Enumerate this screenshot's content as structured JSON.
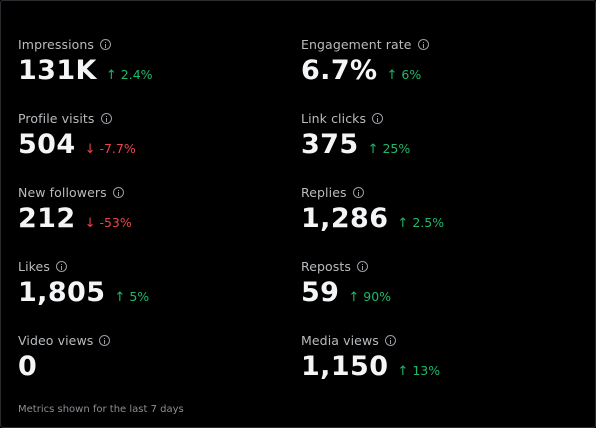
{
  "metrics": [
    {
      "label": "Impressions",
      "value": "131K",
      "direction": "up",
      "arrow": "↑",
      "delta": "2.4%"
    },
    {
      "label": "Engagement rate",
      "value": "6.7%",
      "direction": "up",
      "arrow": "↑",
      "delta": "6%"
    },
    {
      "label": "Profile visits",
      "value": "504",
      "direction": "down",
      "arrow": "↓",
      "delta": "-7.7%"
    },
    {
      "label": "Link clicks",
      "value": "375",
      "direction": "up",
      "arrow": "↑",
      "delta": "25%"
    },
    {
      "label": "New followers",
      "value": "212",
      "direction": "down",
      "arrow": "↓",
      "delta": "-53%"
    },
    {
      "label": "Replies",
      "value": "1,286",
      "direction": "up",
      "arrow": "↑",
      "delta": "2.5%"
    },
    {
      "label": "Likes",
      "value": "1,805",
      "direction": "up",
      "arrow": "↑",
      "delta": "5%"
    },
    {
      "label": "Reposts",
      "value": "59",
      "direction": "up",
      "arrow": "↑",
      "delta": "90%"
    },
    {
      "label": "Video views",
      "value": "0",
      "direction": "none",
      "arrow": "",
      "delta": ""
    },
    {
      "label": "Media views",
      "value": "1,150",
      "direction": "up",
      "arrow": "↑",
      "delta": "13%"
    }
  ],
  "footer": {
    "note": "Metrics shown for the last 7 days"
  },
  "colors": {
    "up": "#1fb76a",
    "down": "#e8454f",
    "background": "#000000"
  },
  "icons": {
    "info": "info-circle-icon",
    "up": "arrow-up-icon",
    "down": "arrow-down-icon"
  }
}
